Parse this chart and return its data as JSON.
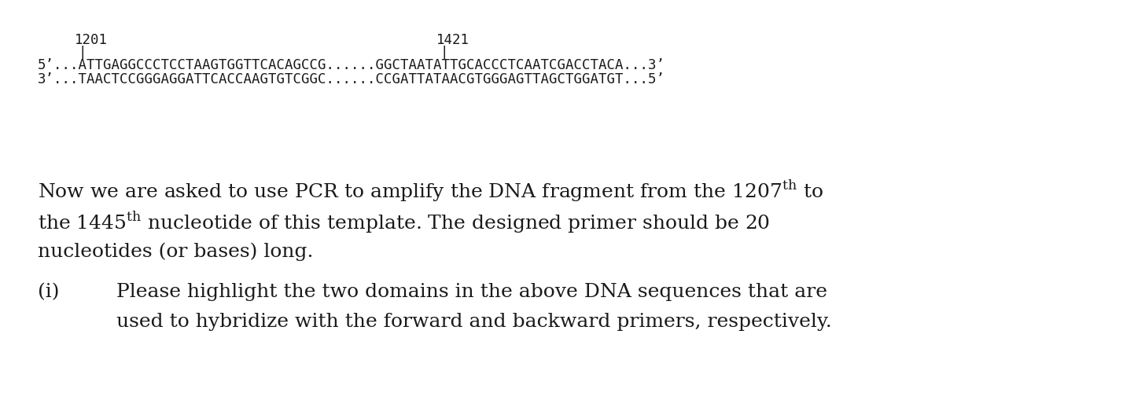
{
  "background_color": "#ffffff",
  "line_num_1201": "1201",
  "line_num_1421": "1421",
  "seq_5prime": "5’...ATTGAGGCCCTCCTAAGTGGTTCACAGCCG......GGCTAATATTGCACCCTCAATCGACCTACA...3’",
  "seq_3prime": "3’...TAACTCCGGGAGGATTCACCAAGTGTCGGC......CCGATTATAACGTGGGAGTTAGCTGGATGT...5’",
  "body_line1a": "Now we are asked to use PCR to amplify the DNA fragment from the 1207",
  "body_sup1": "th",
  "body_line1b": " to",
  "body_line2a": "the 1445",
  "body_sup2": "th",
  "body_line2b": " nucleotide of this template. The designed primer should be 20",
  "body_line3": "nucleotides (or bases) long.",
  "item_label": "(i)",
  "item_text_line1": "Please highlight the two domains in the above DNA sequences that are",
  "item_text_line2": "used to hybridize with the forward and backward primers, respectively.",
  "mono_fontsize": 12.5,
  "body_fontsize": 18,
  "item_fontsize": 18,
  "text_color": "#1a1a1a",
  "figwidth": 14.42,
  "figheight": 5.14,
  "dpi": 100
}
